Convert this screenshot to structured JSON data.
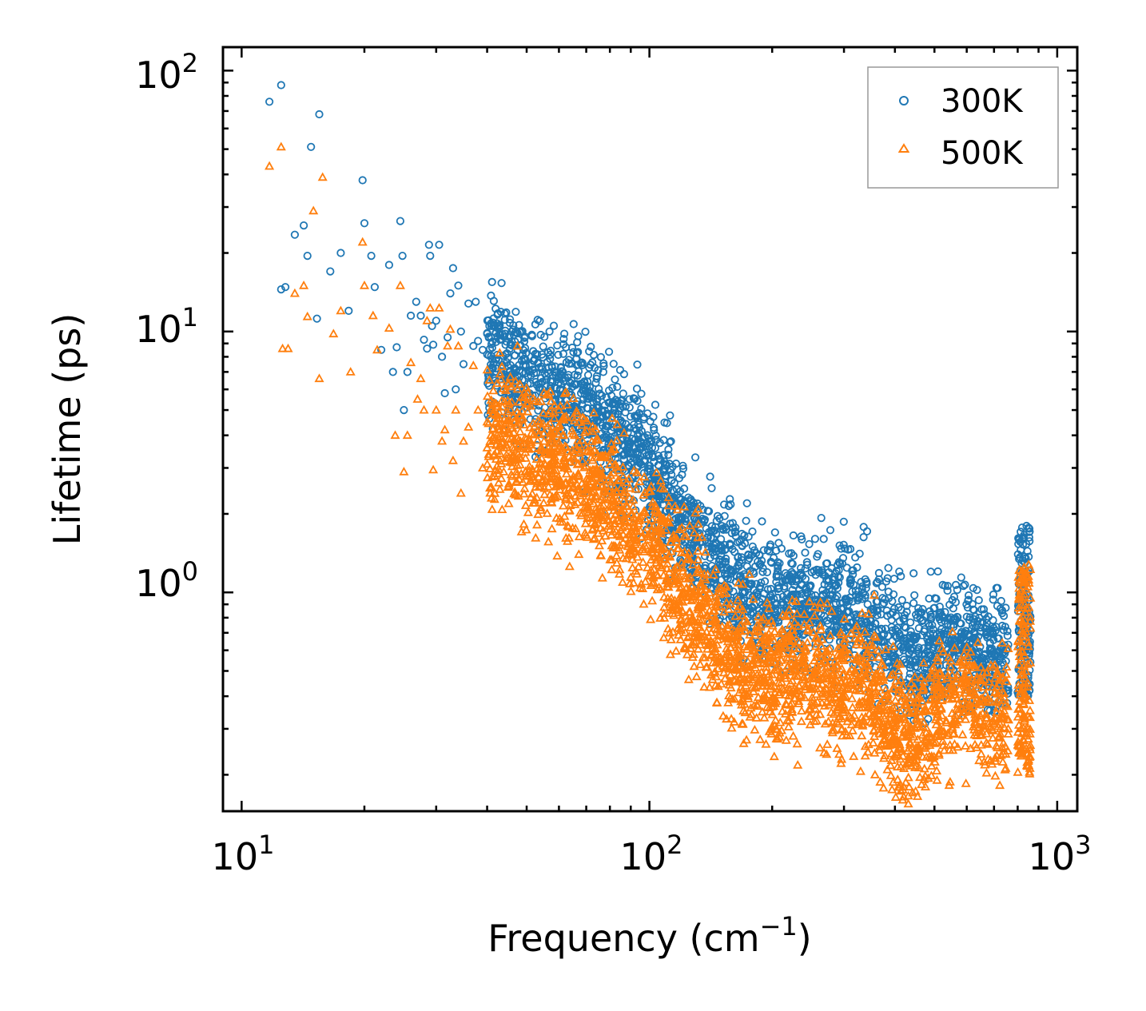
{
  "chart_data": {
    "type": "scatter",
    "title": "",
    "xlabel": "Frequency (cm",
    "xlabel_exp": "−1",
    "xlabel_close": ")",
    "ylabel": "Lifetime (ps)",
    "xscale": "log",
    "yscale": "log",
    "xlim": [
      9,
      1120
    ],
    "ylim": [
      0.145,
      123
    ],
    "x_ticks": [
      {
        "value": 10,
        "base": "10",
        "exp": "1"
      },
      {
        "value": 100,
        "base": "10",
        "exp": "2"
      },
      {
        "value": 1000,
        "base": "10",
        "exp": "3"
      }
    ],
    "y_ticks": [
      {
        "value": 1,
        "base": "10",
        "exp": "0"
      },
      {
        "value": 10,
        "base": "10",
        "exp": "1"
      },
      {
        "value": 100,
        "base": "10",
        "exp": "2"
      }
    ],
    "legend_position": "top-right",
    "series": [
      {
        "name": "300K",
        "marker": "circle",
        "color": "#1f77b4",
        "scattered_points": [
          [
            11.7,
            76
          ],
          [
            12.5,
            88
          ],
          [
            12.5,
            14.5
          ],
          [
            12.8,
            14.8
          ],
          [
            13.5,
            23.5
          ],
          [
            14.2,
            25.5
          ],
          [
            14.5,
            19.5
          ],
          [
            14.8,
            51
          ],
          [
            15.3,
            11.2
          ],
          [
            15.5,
            68
          ],
          [
            16.5,
            17
          ],
          [
            17.5,
            20
          ],
          [
            18.3,
            12
          ],
          [
            19.8,
            38
          ],
          [
            20,
            26
          ],
          [
            20.8,
            19.5
          ],
          [
            21.2,
            14.8
          ],
          [
            22,
            8.5
          ],
          [
            23,
            18
          ],
          [
            23.5,
            7
          ],
          [
            24,
            8.7
          ],
          [
            24.5,
            26.5
          ],
          [
            24.8,
            19.5
          ],
          [
            25,
            5
          ],
          [
            25.5,
            7
          ],
          [
            26,
            11.5
          ],
          [
            26.8,
            13
          ],
          [
            27.5,
            11.5
          ],
          [
            28,
            9.3
          ],
          [
            28.5,
            8.6
          ],
          [
            28.8,
            21.5
          ],
          [
            29,
            19.5
          ],
          [
            29.3,
            10.5
          ],
          [
            29.5,
            8.9
          ],
          [
            30,
            11
          ],
          [
            30.5,
            21.5
          ],
          [
            31,
            8
          ],
          [
            31.5,
            5.8
          ],
          [
            32,
            9.5
          ],
          [
            32.5,
            14
          ],
          [
            33,
            17.5
          ],
          [
            33.5,
            6
          ],
          [
            34,
            15
          ],
          [
            34.5,
            10
          ],
          [
            35,
            7.5
          ],
          [
            36,
            12.8
          ],
          [
            37,
            8.8
          ],
          [
            37.5,
            13
          ],
          [
            38,
            9.2
          ],
          [
            39,
            8.5
          ],
          [
            40,
            9.8
          ],
          [
            41,
            10.5
          ]
        ],
        "dense_band_centers": [
          [
            40,
            8.5
          ],
          [
            50,
            6.5
          ],
          [
            60,
            5.6
          ],
          [
            70,
            5.0
          ],
          [
            80,
            4.2
          ],
          [
            90,
            3.5
          ],
          [
            100,
            3.0
          ],
          [
            110,
            2.4
          ],
          [
            120,
            1.95
          ],
          [
            135,
            1.5
          ],
          [
            150,
            1.25
          ],
          [
            165,
            1.05
          ],
          [
            185,
            0.95
          ],
          [
            210,
            0.93
          ],
          [
            240,
            0.92
          ],
          [
            270,
            0.9
          ],
          [
            300,
            0.85
          ],
          [
            340,
            0.8
          ],
          [
            380,
            0.72
          ],
          [
            420,
            0.6
          ],
          [
            450,
            0.55
          ],
          [
            500,
            0.62
          ],
          [
            550,
            0.68
          ],
          [
            600,
            0.66
          ],
          [
            650,
            0.6
          ],
          [
            700,
            0.55
          ],
          [
            760,
            0.55
          ]
        ],
        "dense_band_spread_decades": 0.12,
        "high_frequency_spike": {
          "x_range": [
            800,
            860
          ],
          "y_range": [
            0.4,
            1.8
          ]
        }
      },
      {
        "name": "500K",
        "marker": "triangle",
        "color": "#ff7f0e",
        "scattered_points": [
          [
            11.7,
            43
          ],
          [
            12.5,
            51
          ],
          [
            12.6,
            8.6
          ],
          [
            13,
            8.6
          ],
          [
            13.5,
            14
          ],
          [
            14.2,
            15
          ],
          [
            14.5,
            11.4
          ],
          [
            15,
            29
          ],
          [
            15.5,
            6.6
          ],
          [
            15.8,
            39
          ],
          [
            16.8,
            9.8
          ],
          [
            17.5,
            12
          ],
          [
            18.5,
            7
          ],
          [
            19.8,
            22
          ],
          [
            20,
            15
          ],
          [
            21,
            11.5
          ],
          [
            21.5,
            8.5
          ],
          [
            23,
            10.3
          ],
          [
            23.8,
            4
          ],
          [
            24.5,
            15
          ],
          [
            25,
            2.9
          ],
          [
            25.5,
            4
          ],
          [
            26,
            7.6
          ],
          [
            27,
            5.5
          ],
          [
            27.5,
            6.6
          ],
          [
            28,
            5
          ],
          [
            28.5,
            11
          ],
          [
            29,
            12.3
          ],
          [
            29.5,
            2.95
          ],
          [
            30,
            5
          ],
          [
            30.5,
            12.3
          ],
          [
            31,
            3.8
          ],
          [
            31.5,
            4.2
          ],
          [
            32,
            8.8
          ],
          [
            32.5,
            10.2
          ],
          [
            33,
            3.2
          ],
          [
            33.5,
            5
          ],
          [
            34,
            8.8
          ],
          [
            34.5,
            2.4
          ],
          [
            35,
            3.8
          ],
          [
            36,
            4.3
          ],
          [
            37,
            7.4
          ],
          [
            38,
            5
          ],
          [
            39,
            3
          ],
          [
            40,
            4.5
          ],
          [
            41,
            2.3
          ]
        ],
        "dense_band_centers": [
          [
            40,
            4.2
          ],
          [
            50,
            3.5
          ],
          [
            60,
            3.0
          ],
          [
            70,
            2.7
          ],
          [
            80,
            2.3
          ],
          [
            90,
            1.8
          ],
          [
            100,
            1.55
          ],
          [
            110,
            1.3
          ],
          [
            120,
            1.05
          ],
          [
            135,
            0.85
          ],
          [
            150,
            0.68
          ],
          [
            165,
            0.55
          ],
          [
            185,
            0.5
          ],
          [
            210,
            0.5
          ],
          [
            240,
            0.48
          ],
          [
            270,
            0.46
          ],
          [
            300,
            0.45
          ],
          [
            340,
            0.42
          ],
          [
            380,
            0.35
          ],
          [
            420,
            0.26
          ],
          [
            450,
            0.28
          ],
          [
            500,
            0.34
          ],
          [
            550,
            0.38
          ],
          [
            600,
            0.38
          ],
          [
            650,
            0.35
          ],
          [
            700,
            0.33
          ],
          [
            760,
            0.32
          ]
        ],
        "dense_band_spread_decades": 0.13,
        "high_frequency_spike": {
          "x_range": [
            800,
            860
          ],
          "y_range": [
            0.2,
            1.3
          ]
        }
      }
    ]
  }
}
